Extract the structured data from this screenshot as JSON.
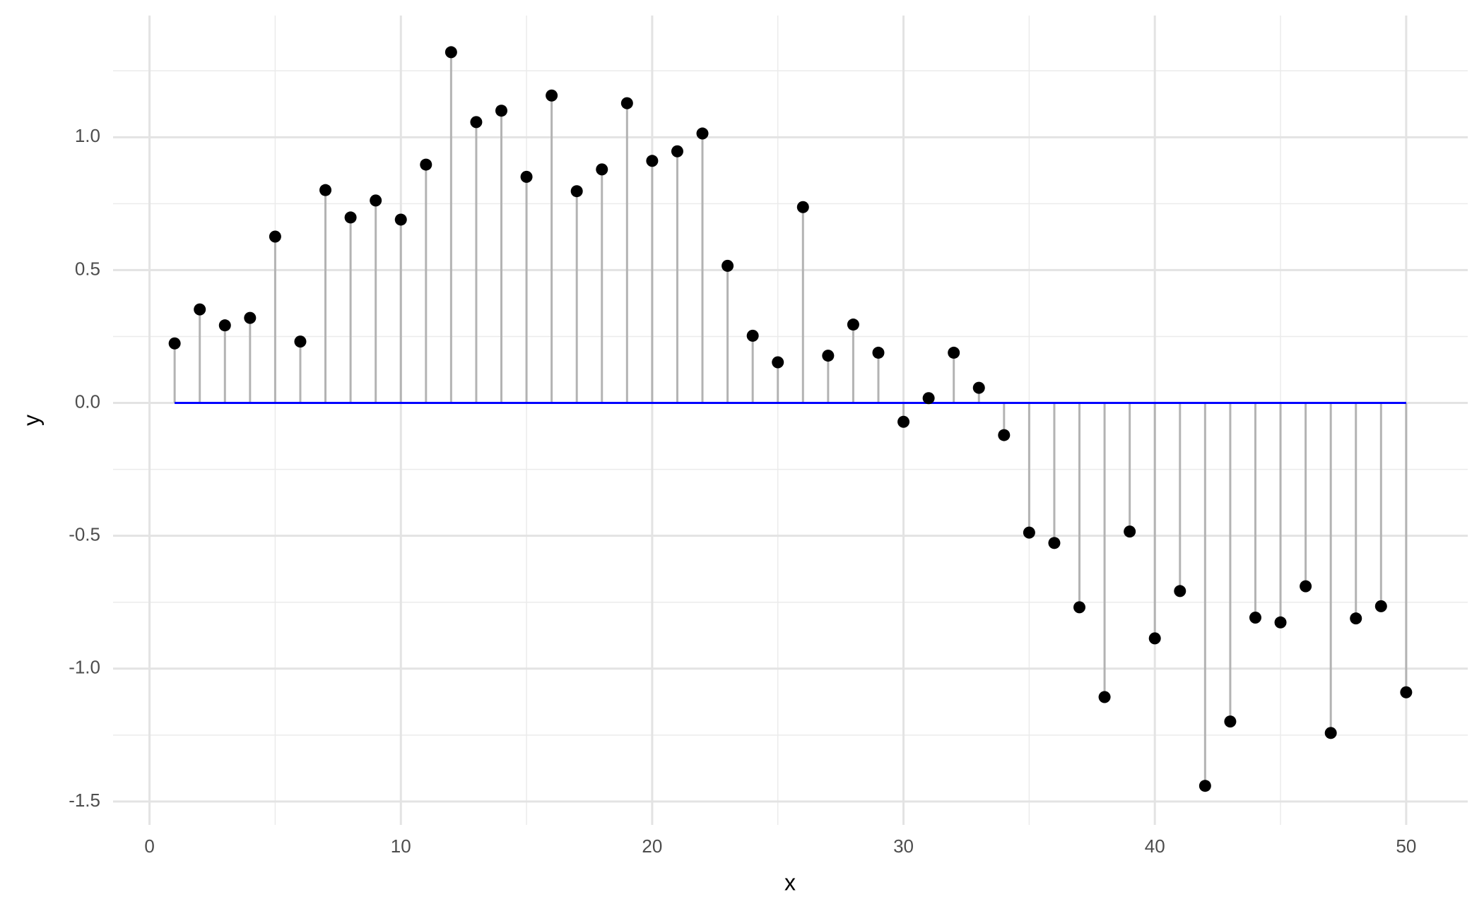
{
  "chart_data": {
    "type": "lollipop",
    "x_label": "x",
    "y_label": "y",
    "x": [
      1,
      2,
      3,
      4,
      5,
      6,
      7,
      8,
      9,
      10,
      11,
      12,
      13,
      14,
      15,
      16,
      17,
      18,
      19,
      20,
      21,
      22,
      23,
      24,
      25,
      26,
      27,
      28,
      29,
      30,
      31,
      32,
      33,
      34,
      35,
      36,
      37,
      38,
      39,
      40,
      41,
      42,
      43,
      44,
      45,
      46,
      47,
      48,
      49,
      50
    ],
    "values": [
      0.224,
      0.352,
      0.292,
      0.32,
      0.626,
      0.231,
      0.801,
      0.698,
      0.762,
      0.69,
      0.897,
      1.32,
      1.057,
      1.1,
      0.851,
      1.157,
      0.797,
      0.879,
      1.128,
      0.911,
      0.947,
      1.014,
      0.516,
      0.253,
      0.153,
      0.737,
      0.178,
      0.295,
      0.189,
      -0.071,
      0.018,
      0.189,
      0.057,
      -0.121,
      -0.488,
      -0.527,
      -0.769,
      -1.107,
      -0.484,
      -0.886,
      -0.708,
      -1.441,
      -1.199,
      -0.808,
      -0.826,
      -0.69,
      -1.242,
      -0.811,
      -0.765,
      -1.089
    ],
    "color": "#000000",
    "stem_color": "#b3b3b3",
    "baseline": {
      "value": 0,
      "from": 1,
      "to": 50,
      "color": "#0000ff"
    },
    "xlim": [
      -1.45,
      52.45
    ],
    "xticks": [
      0,
      10,
      20,
      30,
      40,
      50
    ],
    "x_minor_ticks": [
      5,
      15,
      25,
      35,
      45
    ],
    "ylim": [
      -1.588,
      1.458
    ],
    "yticks": [
      -1.5,
      {
        "value": -1,
        "label": "-1.0"
      },
      -0.5,
      {
        "value": 0,
        "label": "0.0"
      },
      0.5,
      {
        "value": 1,
        "label": "1.0"
      }
    ],
    "y_minor_ticks": [
      -1.25,
      -0.75,
      -0.25,
      0.25,
      0.75,
      1.25
    ],
    "grid": true
  }
}
